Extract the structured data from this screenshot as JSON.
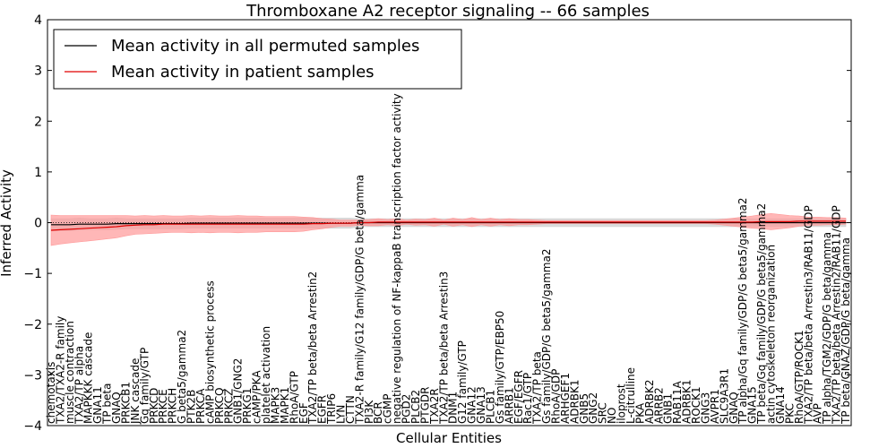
{
  "chart_data": {
    "type": "line",
    "title": "Thromboxane A2 receptor signaling -- 66 samples",
    "xlabel": "Cellular Entities",
    "ylabel": "Inferred Activity",
    "ylim": [
      -4,
      4
    ],
    "yticks": [
      -4,
      -3,
      -2,
      -1,
      0,
      1,
      2,
      3,
      4
    ],
    "ytick_labels": [
      "−4",
      "−3",
      "−2",
      "−1",
      "0",
      "1",
      "2",
      "3",
      "4"
    ],
    "grid": false,
    "legend": {
      "position": "top-left",
      "entries": [
        "Mean activity in all permuted samples",
        "Mean activity in patient samples"
      ]
    },
    "colors": {
      "permuted": "#000000",
      "patient": "#e00000",
      "patient_band": "#ff9999",
      "permuted_band": "#cfcfcf"
    },
    "categories": [
      "chemotaxis",
      "TXA2/TXA2-R family",
      "muscle contraction",
      "TXA2/TP alpha",
      "MAPKKK cascade",
      "GNA11",
      "TP beta",
      "GNAQ",
      "PRKCB1",
      "JNK cascade",
      "Gq family/GTP",
      "PRKCD",
      "PRKCE",
      "PRKCH",
      "G beta5/gamma2",
      "PTK2B",
      "PRKCA",
      "cAMP biosynthetic process",
      "PRKCQ",
      "PRKCZ",
      "GNB1/GNG2",
      "PRKG1",
      "cAMP/PKA",
      "platelet activation",
      "MAPK3",
      "MAPK1",
      "RhoA/GTP",
      "EGF",
      "TXA2/TP beta/beta Arrestin2",
      "EGFR",
      "TRIP6",
      "LYN",
      "CTTN",
      "TXA2-R family/G12 family/GDP/G beta/gamma",
      "PI3K",
      "BCR",
      "cGMP",
      "negative regulation of NF-kappaB transcription factor activity",
      "PGD2",
      "PLCB2",
      "PTGDR",
      "TXA2R",
      "TXA2/TP beta/beta Arrestin3",
      "DNM1",
      "G12 family/GTP",
      "GNA12",
      "GNA13",
      "PLCB1",
      "Gs family/GTP/EBP50",
      "ARRB1",
      "EGF/EGFR",
      "Rac1/GTP",
      "TXA2/TP beta",
      "Gs family/GDP/G beta5/gamma2",
      "RhoA/GDP",
      "ARHGEF1",
      "ADRBK1",
      "GNB5",
      "GNG2",
      "SRC",
      "NO",
      "iloprost",
      "L-citrulline",
      "PKA",
      "ADRBK2",
      "ARRB2",
      "GNB1",
      "RAB11A",
      "ADRBK1",
      "ROCK1",
      "GNG3",
      "AVPR1",
      "SLC9A3R1",
      "GNAQ",
      "TP alpha/Gq family/GDP/G beta5/gamma2",
      "GNA15",
      "TP beta/Gq family/GDP/G beta5/gamma2",
      "actin cytoskeleton reorganization",
      "GNA14",
      "PKC",
      "RhoA/GTP/ROCK1",
      "TXA2/TP beta/beta Arrestin3/RAB11/GDP",
      "AVP",
      "TP alpha/TGM2/GDP/G beta/gamma",
      "TXA2/TP beta/beta Arrestin2/RAB11/GDP",
      "TP beta/GNAZ/GDP/G beta/gamma"
    ],
    "series": [
      {
        "name": "Mean activity in all permuted samples",
        "values": [
          -0.04,
          -0.04,
          -0.04,
          -0.03,
          -0.03,
          -0.03,
          -0.03,
          -0.02,
          -0.02,
          -0.02,
          -0.02,
          -0.02,
          -0.02,
          -0.02,
          -0.02,
          -0.01,
          -0.01,
          -0.01,
          -0.01,
          -0.01,
          -0.01,
          -0.01,
          -0.01,
          -0.01,
          -0.01,
          -0.01,
          -0.01,
          -0.01,
          -0.01,
          -0.01,
          -0.01,
          -0.01,
          -0.01,
          0.0,
          0.0,
          0.0,
          0.0,
          0.0,
          0.0,
          0.0,
          0.0,
          0.0,
          0.0,
          0.0,
          0.0,
          0.0,
          0.0,
          0.0,
          0.0,
          0.0,
          0.0,
          0.0,
          0.0,
          0.0,
          0.0,
          0.0,
          0.0,
          0.0,
          0.0,
          0.0,
          0.0,
          0.0,
          0.0,
          0.0,
          0.0,
          0.0,
          0.0,
          0.0,
          0.0,
          0.0,
          0.0,
          0.0,
          0.0,
          0.0,
          0.0,
          0.0,
          0.0,
          0.0,
          0.0,
          0.0,
          0.0,
          0.0,
          0.0,
          0.0,
          0.0,
          0.0
        ],
        "spread": [
          0.12,
          0.12,
          0.12,
          0.12,
          0.11,
          0.11,
          0.11,
          0.11,
          0.1,
          0.1,
          0.1,
          0.1,
          0.1,
          0.1,
          0.1,
          0.1,
          0.1,
          0.1,
          0.1,
          0.1,
          0.1,
          0.1,
          0.1,
          0.1,
          0.1,
          0.1,
          0.1,
          0.1,
          0.1,
          0.1,
          0.1,
          0.1,
          0.1,
          0.08,
          0.08,
          0.08,
          0.08,
          0.08,
          0.08,
          0.08,
          0.08,
          0.08,
          0.08,
          0.08,
          0.08,
          0.08,
          0.08,
          0.08,
          0.08,
          0.08,
          0.08,
          0.08,
          0.08,
          0.08,
          0.08,
          0.08,
          0.08,
          0.08,
          0.08,
          0.08,
          0.08,
          0.08,
          0.08,
          0.08,
          0.08,
          0.08,
          0.08,
          0.08,
          0.08,
          0.08,
          0.08,
          0.08,
          0.08,
          0.08,
          0.08,
          0.08,
          0.08,
          0.08,
          0.08,
          0.08,
          0.08,
          0.08,
          0.08,
          0.08,
          0.08,
          0.08
        ]
      },
      {
        "name": "Mean activity in patient samples",
        "values": [
          -0.15,
          -0.14,
          -0.13,
          -0.12,
          -0.11,
          -0.1,
          -0.09,
          -0.08,
          -0.06,
          -0.05,
          -0.04,
          -0.04,
          -0.03,
          -0.03,
          -0.03,
          -0.03,
          -0.03,
          -0.03,
          -0.03,
          -0.03,
          -0.03,
          -0.03,
          -0.03,
          -0.03,
          -0.03,
          -0.03,
          -0.03,
          -0.03,
          -0.02,
          -0.02,
          -0.01,
          -0.01,
          -0.01,
          0.0,
          0.0,
          0.01,
          0.01,
          0.01,
          0.01,
          0.01,
          0.01,
          0.01,
          0.01,
          0.01,
          0.01,
          0.01,
          0.01,
          0.01,
          0.01,
          0.01,
          0.01,
          0.01,
          0.01,
          0.01,
          0.01,
          0.01,
          0.01,
          0.01,
          0.01,
          0.01,
          0.01,
          0.01,
          0.01,
          0.01,
          0.01,
          0.01,
          0.01,
          0.01,
          0.01,
          0.01,
          0.01,
          0.01,
          0.01,
          0.01,
          0.01,
          0.01,
          0.02,
          0.02,
          0.02,
          0.02,
          0.03,
          0.03,
          0.03,
          0.03,
          0.03,
          0.03
        ],
        "spread": [
          0.3,
          0.28,
          0.27,
          0.26,
          0.25,
          0.24,
          0.23,
          0.22,
          0.2,
          0.18,
          0.18,
          0.17,
          0.17,
          0.16,
          0.16,
          0.17,
          0.16,
          0.17,
          0.16,
          0.16,
          0.17,
          0.16,
          0.16,
          0.15,
          0.15,
          0.15,
          0.15,
          0.14,
          0.12,
          0.1,
          0.08,
          0.06,
          0.06,
          0.05,
          0.06,
          0.07,
          0.05,
          0.07,
          0.04,
          0.06,
          0.05,
          0.08,
          0.04,
          0.08,
          0.05,
          0.09,
          0.05,
          0.08,
          0.05,
          0.07,
          0.05,
          0.05,
          0.04,
          0.03,
          0.03,
          0.03,
          0.03,
          0.03,
          0.03,
          0.03,
          0.03,
          0.03,
          0.03,
          0.03,
          0.03,
          0.03,
          0.03,
          0.03,
          0.03,
          0.03,
          0.03,
          0.04,
          0.06,
          0.08,
          0.1,
          0.12,
          0.14,
          0.16,
          0.14,
          0.12,
          0.1,
          0.08,
          0.08,
          0.07,
          0.07,
          0.06
        ]
      }
    ]
  }
}
